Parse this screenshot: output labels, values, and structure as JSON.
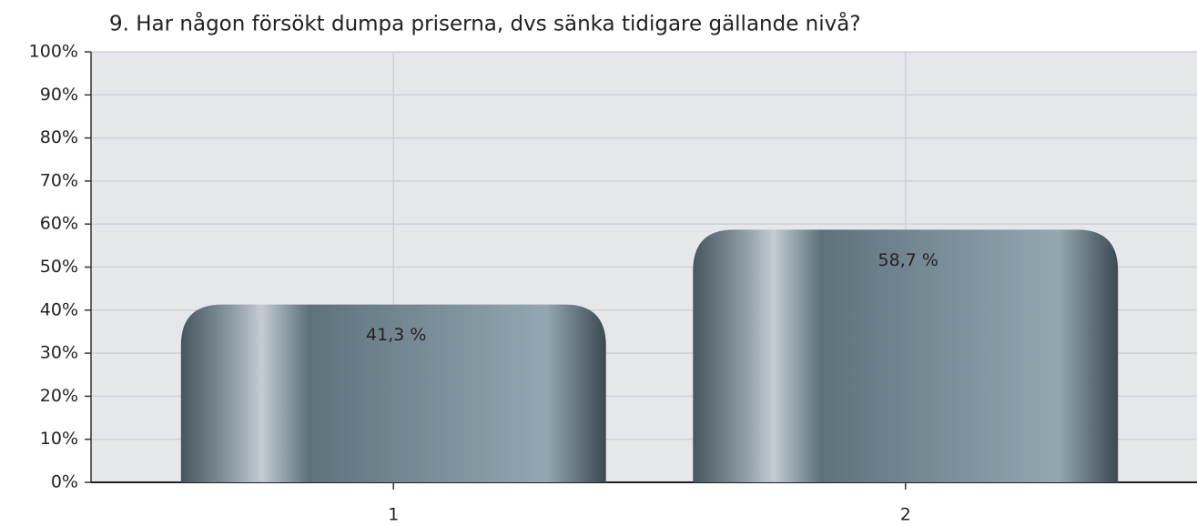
{
  "chart_data": {
    "type": "bar",
    "title": "9. Har någon försökt dumpa priserna, dvs sänka tidigare gällande nivå?",
    "categories": [
      "1",
      "2"
    ],
    "values": [
      41.3,
      58.7
    ],
    "value_labels": [
      "41,3 %",
      "58,7 %"
    ],
    "color": "#6b7f8b",
    "ylim": [
      0,
      100
    ],
    "yticks": [
      {
        "value": 0,
        "label": "0%"
      },
      {
        "value": 10,
        "label": "10%"
      },
      {
        "value": 20,
        "label": "20%"
      },
      {
        "value": 30,
        "label": "30%"
      },
      {
        "value": 40,
        "label": "40%"
      },
      {
        "value": 50,
        "label": "50%"
      },
      {
        "value": 60,
        "label": "60%"
      },
      {
        "value": 70,
        "label": "70%"
      },
      {
        "value": 80,
        "label": "80%"
      },
      {
        "value": 90,
        "label": "90%"
      },
      {
        "value": 100,
        "label": "100%"
      }
    ],
    "grid": true
  }
}
